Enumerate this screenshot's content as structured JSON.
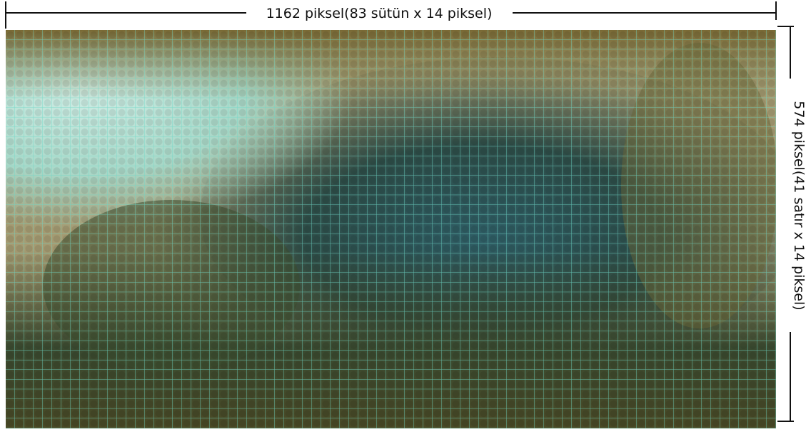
{
  "width_label": "1162 piksel(83 sütün x 14 piksel)",
  "height_label": "574 piksel(41 satır x 14 piksel)"
}
